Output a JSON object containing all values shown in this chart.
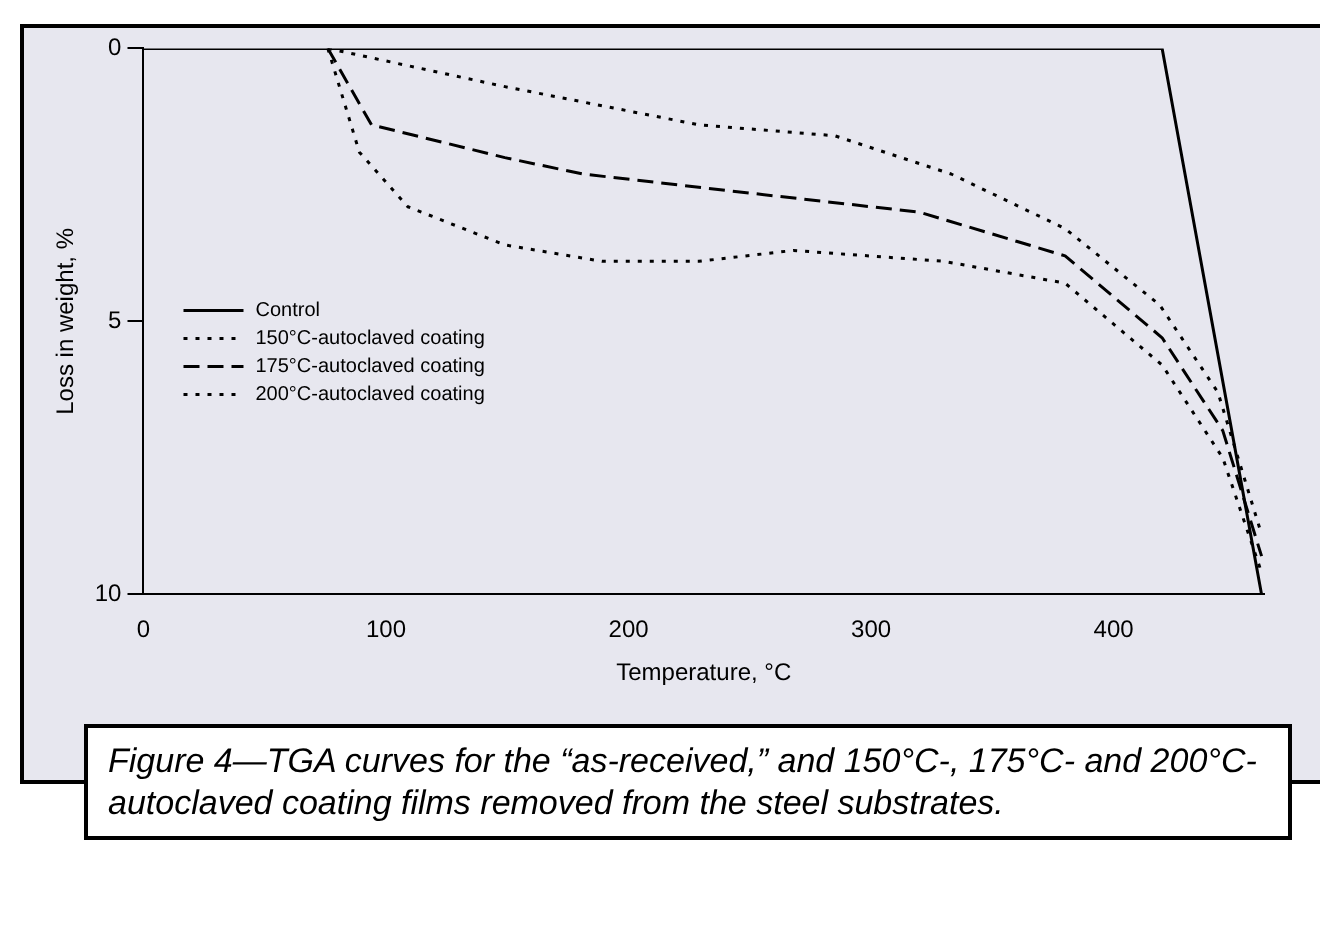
{
  "chart_data": {
    "type": "line",
    "xlabel": "Temperature, °C",
    "ylabel": "Loss in weight, %",
    "xlim": [
      0,
      462
    ],
    "xticks": [
      0,
      100,
      200,
      300,
      400
    ],
    "ylim": [
      10,
      0
    ],
    "yticks": [
      0,
      5,
      10
    ],
    "grid": false,
    "legend": "left",
    "marker": "none",
    "series": [
      {
        "name": "Control",
        "color": "#000000",
        "line_style": "solid",
        "x": [
          0,
          420,
          461
        ],
        "values": [
          0,
          0,
          10
        ]
      },
      {
        "name": "150°C-autoclaved coating",
        "color": "#000000",
        "line_style": "dotted",
        "x": [
          76,
          149,
          229,
          285,
          333,
          380,
          419,
          443,
          461
        ],
        "values": [
          0,
          0.7,
          1.4,
          1.6,
          2.3,
          3.3,
          4.7,
          6.3,
          8.9
        ]
      },
      {
        "name": "175°C-autoclaved coating",
        "color": "#000000",
        "line_style": "dashed",
        "x": [
          76,
          94,
          149,
          181,
          240,
          320,
          380,
          420,
          445,
          461
        ],
        "values": [
          0,
          1.4,
          2.0,
          2.3,
          2.6,
          3.0,
          3.8,
          5.3,
          7.0,
          9.3
        ]
      },
      {
        "name": "200°C-autoclaved coating",
        "color": "#000000",
        "line_style": "dotted",
        "x": [
          76,
          89,
          109,
          149,
          189,
          229,
          268,
          330,
          380,
          420,
          445,
          461
        ],
        "values": [
          0,
          1.9,
          2.9,
          3.6,
          3.9,
          3.9,
          3.7,
          3.9,
          4.3,
          5.8,
          7.5,
          9.6
        ]
      }
    ],
    "annotations": [
      "Figure 4—TGA curves for the “as-received,” and 150°C-, 175°C- and 200°C-autoclaved coating films removed from the steel substrates."
    ]
  }
}
